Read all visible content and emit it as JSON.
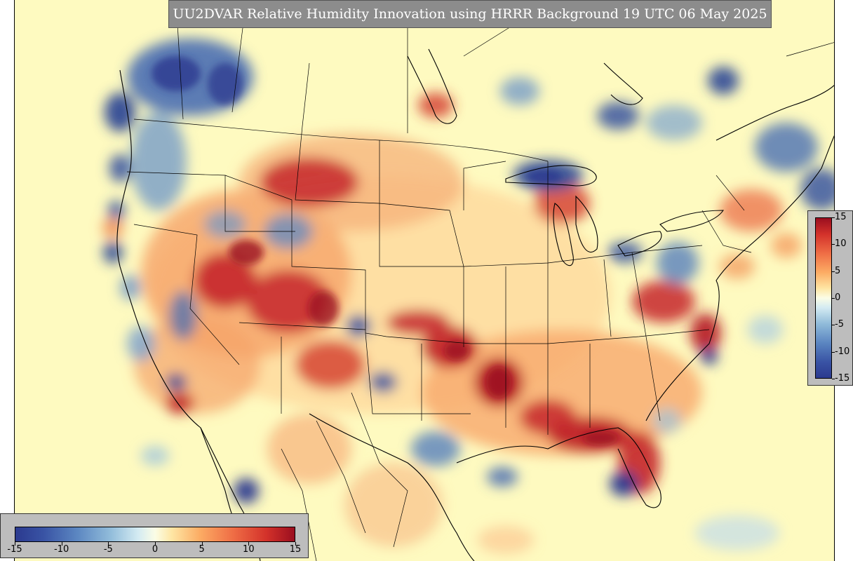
{
  "title": "UU2DVAR Relative Humidity Innovation using HRRR Background 19 UTC 06 May 2025",
  "colorbar": {
    "min": -15,
    "max": 15,
    "ticks": [
      "-15",
      "-10",
      "-5",
      "0",
      "5",
      "10",
      "15"
    ],
    "colors": {
      "low": "#2b3a8f",
      "mid": "#fbfde6",
      "high": "#9a0e1f",
      "background_field": "#fefac0",
      "boundary_line": "#000000"
    }
  }
}
